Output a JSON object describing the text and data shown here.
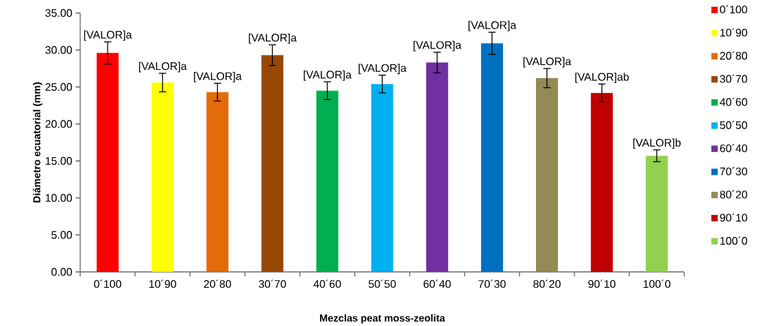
{
  "chart_data": {
    "type": "bar",
    "xlabel": "Mezclas peat moss-zeolita",
    "ylabel": "Diámetro ecuatorial (mm)",
    "categories": [
      "0´100",
      "10´90",
      "20´80",
      "30´70",
      "40´60",
      "50´50",
      "60´40",
      "70´30",
      "80´20",
      "90´10",
      "100´0"
    ],
    "series": [
      {
        "name": "0´100",
        "color": "#ff0000",
        "values": [
          29.6,
          null,
          null,
          null,
          null,
          null,
          null,
          null,
          null,
          null,
          null
        ],
        "errors": [
          1.5,
          null,
          null,
          null,
          null,
          null,
          null,
          null,
          null,
          null,
          null
        ],
        "value_labels": [
          "[VALOR]a",
          null,
          null,
          null,
          null,
          null,
          null,
          null,
          null,
          null,
          null
        ]
      },
      {
        "name": "10´90",
        "color": "#ffff00",
        "values": [
          null,
          25.6,
          null,
          null,
          null,
          null,
          null,
          null,
          null,
          null,
          null
        ],
        "errors": [
          null,
          1.25,
          null,
          null,
          null,
          null,
          null,
          null,
          null,
          null,
          null
        ],
        "value_labels": [
          null,
          "[VALOR]a",
          null,
          null,
          null,
          null,
          null,
          null,
          null,
          null,
          null
        ]
      },
      {
        "name": "20´80",
        "color": "#e36c09",
        "values": [
          null,
          null,
          24.3,
          null,
          null,
          null,
          null,
          null,
          null,
          null,
          null
        ],
        "errors": [
          null,
          null,
          1.2,
          null,
          null,
          null,
          null,
          null,
          null,
          null,
          null
        ],
        "value_labels": [
          null,
          null,
          "[VALOR]a",
          null,
          null,
          null,
          null,
          null,
          null,
          null,
          null
        ]
      },
      {
        "name": "30´70",
        "color": "#974806",
        "values": [
          null,
          null,
          null,
          29.3,
          null,
          null,
          null,
          null,
          null,
          null,
          null
        ],
        "errors": [
          null,
          null,
          null,
          1.4,
          null,
          null,
          null,
          null,
          null,
          null,
          null
        ],
        "value_labels": [
          null,
          null,
          null,
          "[VALOR]a",
          null,
          null,
          null,
          null,
          null,
          null,
          null
        ]
      },
      {
        "name": "40´60",
        "color": "#00b050",
        "values": [
          null,
          null,
          null,
          null,
          24.5,
          null,
          null,
          null,
          null,
          null,
          null
        ],
        "errors": [
          null,
          null,
          null,
          null,
          1.2,
          null,
          null,
          null,
          null,
          null,
          null
        ],
        "value_labels": [
          null,
          null,
          null,
          null,
          "[VALOR]a",
          null,
          null,
          null,
          null,
          null,
          null
        ]
      },
      {
        "name": "50´50",
        "color": "#00b0f0",
        "values": [
          null,
          null,
          null,
          null,
          null,
          25.4,
          null,
          null,
          null,
          null,
          null
        ],
        "errors": [
          null,
          null,
          null,
          null,
          null,
          1.2,
          null,
          null,
          null,
          null,
          null
        ],
        "value_labels": [
          null,
          null,
          null,
          null,
          null,
          "[VALOR]a",
          null,
          null,
          null,
          null,
          null
        ]
      },
      {
        "name": "60´40",
        "color": "#7030a0",
        "values": [
          null,
          null,
          null,
          null,
          null,
          null,
          28.3,
          null,
          null,
          null,
          null
        ],
        "errors": [
          null,
          null,
          null,
          null,
          null,
          null,
          1.4,
          null,
          null,
          null,
          null
        ],
        "value_labels": [
          null,
          null,
          null,
          null,
          null,
          null,
          "[VALOR]a",
          null,
          null,
          null,
          null
        ]
      },
      {
        "name": "70´30",
        "color": "#0070c0",
        "values": [
          null,
          null,
          null,
          null,
          null,
          null,
          null,
          30.9,
          null,
          null,
          null
        ],
        "errors": [
          null,
          null,
          null,
          null,
          null,
          null,
          null,
          1.5,
          null,
          null,
          null
        ],
        "value_labels": [
          null,
          null,
          null,
          null,
          null,
          null,
          null,
          "[VALOR]a",
          null,
          null,
          null
        ]
      },
      {
        "name": "80´20",
        "color": "#948a54",
        "values": [
          null,
          null,
          null,
          null,
          null,
          null,
          null,
          null,
          26.2,
          null,
          null
        ],
        "errors": [
          null,
          null,
          null,
          null,
          null,
          null,
          null,
          null,
          1.3,
          null,
          null
        ],
        "value_labels": [
          null,
          null,
          null,
          null,
          null,
          null,
          null,
          null,
          "[VALOR]a",
          null,
          null
        ]
      },
      {
        "name": "90´10",
        "color": "#c00000",
        "values": [
          null,
          null,
          null,
          null,
          null,
          null,
          null,
          null,
          null,
          24.2,
          null
        ],
        "errors": [
          null,
          null,
          null,
          null,
          null,
          null,
          null,
          null,
          null,
          1.2,
          null
        ],
        "value_labels": [
          null,
          null,
          null,
          null,
          null,
          null,
          null,
          null,
          null,
          "[VALOR]ab",
          null
        ]
      },
      {
        "name": "100´0",
        "color": "#92d050",
        "values": [
          null,
          null,
          null,
          null,
          null,
          null,
          null,
          null,
          null,
          null,
          15.7
        ],
        "errors": [
          null,
          null,
          null,
          null,
          null,
          null,
          null,
          null,
          null,
          null,
          0.8
        ],
        "value_labels": [
          null,
          null,
          null,
          null,
          null,
          null,
          null,
          null,
          null,
          null,
          "[VALOR]b"
        ]
      }
    ],
    "ylim": [
      0,
      35
    ],
    "yticks": [
      {
        "value": 0,
        "label": "0.00"
      },
      {
        "value": 5,
        "label": "5.00"
      },
      {
        "value": 10,
        "label": "10.00"
      },
      {
        "value": 15,
        "label": "15.00"
      },
      {
        "value": 20,
        "label": "20.00"
      },
      {
        "value": 25,
        "label": "25.00"
      },
      {
        "value": 30,
        "label": "30.00"
      },
      {
        "value": 35,
        "label": "35.00"
      }
    ],
    "legend": "right"
  }
}
